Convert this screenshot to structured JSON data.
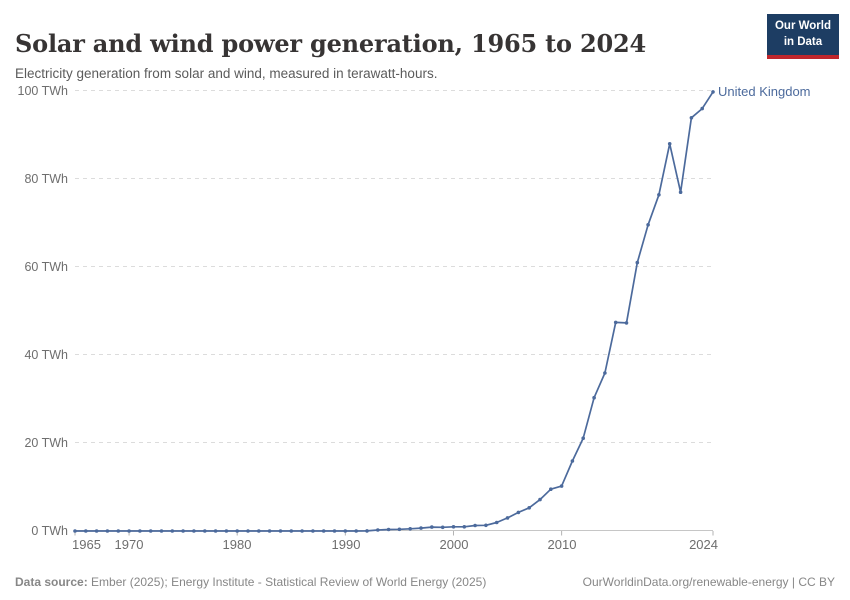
{
  "header": {
    "title": "Solar and wind power generation, 1965 to 2024",
    "subtitle": "Electricity generation from solar and wind, measured in terawatt-hours.",
    "logo": {
      "line1": "Our World",
      "line2": "in Data",
      "bg_color": "#1d3d63",
      "accent_color": "#c0262c"
    }
  },
  "chart_data": {
    "type": "line",
    "title": "Solar and wind power generation, 1965 to 2024",
    "xlabel": "",
    "ylabel": "terawatt-hours",
    "xlim": [
      1965,
      2024
    ],
    "ylim": [
      0,
      100
    ],
    "grid": "horizontal-dashed",
    "legend_position": "end-of-line-label",
    "years": [
      1965,
      1966,
      1967,
      1968,
      1969,
      1970,
      1971,
      1972,
      1973,
      1974,
      1975,
      1976,
      1977,
      1978,
      1979,
      1980,
      1981,
      1982,
      1983,
      1984,
      1985,
      1986,
      1987,
      1988,
      1989,
      1990,
      1991,
      1992,
      1993,
      1994,
      1995,
      1996,
      1997,
      1998,
      1999,
      2000,
      2001,
      2002,
      2003,
      2004,
      2005,
      2006,
      2007,
      2008,
      2009,
      2010,
      2011,
      2012,
      2013,
      2014,
      2015,
      2016,
      2017,
      2018,
      2019,
      2020,
      2021,
      2022,
      2023,
      2024
    ],
    "series": [
      {
        "name": "United Kingdom",
        "color": "#4c6a9c",
        "values": [
          0,
          0,
          0,
          0,
          0,
          0,
          0,
          0,
          0,
          0,
          0,
          0,
          0,
          0,
          0,
          0,
          0,
          0,
          0,
          0,
          0,
          0,
          0,
          0,
          0.01,
          0.01,
          0.01,
          0.03,
          0.22,
          0.34,
          0.39,
          0.49,
          0.67,
          0.88,
          0.85,
          0.95,
          0.96,
          1.26,
          1.29,
          1.94,
          2.98,
          4.23,
          5.28,
          7.13,
          9.5,
          10.2,
          15.9,
          21.1,
          30.3,
          35.9,
          47.4,
          47.3,
          61.0,
          69.6,
          76.4,
          88.0,
          77.0,
          93.9,
          96.0,
          99.8
        ]
      }
    ],
    "yticks": [
      {
        "value": 0,
        "label": "0 TWh"
      },
      {
        "value": 20,
        "label": "20 TWh"
      },
      {
        "value": 40,
        "label": "40 TWh"
      },
      {
        "value": 60,
        "label": "60 TWh"
      },
      {
        "value": 80,
        "label": "80 TWh"
      },
      {
        "value": 100,
        "label": "100 TWh"
      }
    ],
    "xticks": [
      {
        "value": 1965,
        "label": "1965"
      },
      {
        "value": 1970,
        "label": "1970"
      },
      {
        "value": 1980,
        "label": "1980"
      },
      {
        "value": 1990,
        "label": "1990"
      },
      {
        "value": 2000,
        "label": "2000"
      },
      {
        "value": 2010,
        "label": "2010"
      },
      {
        "value": 2024,
        "label": "2024"
      }
    ]
  },
  "footer": {
    "source_label": "Data source:",
    "source_text": " Ember (2025); Energy Institute - Statistical Review of World Energy (2025)",
    "link_text": "OurWorldinData.org/renewable-energy | CC BY"
  }
}
